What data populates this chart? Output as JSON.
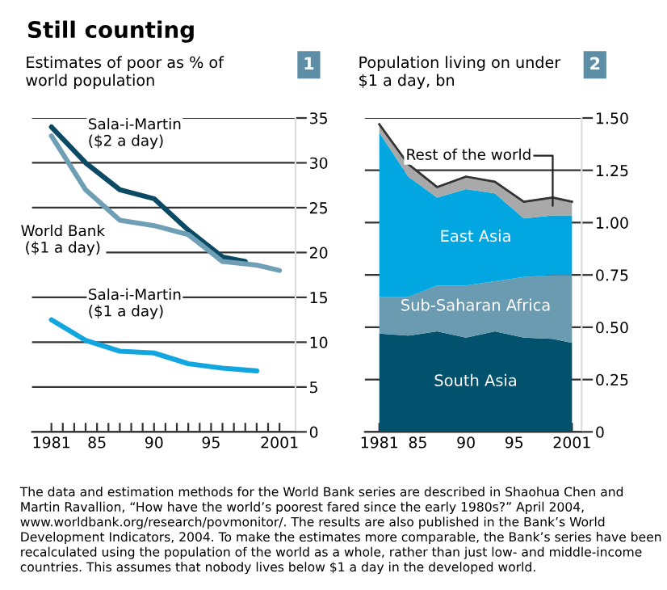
{
  "chart_data": [
    {
      "type": "line",
      "title": "Still counting",
      "subtitle": "Estimates of poor as % of\nworld population",
      "annotations": [
        "1"
      ],
      "xlim": [
        1979.3,
        2002.4
      ],
      "ylim": [
        0,
        35
      ],
      "xticks": [
        1981,
        {
          "value": 1982,
          "label": null
        },
        {
          "value": 1983,
          "label": null
        },
        {
          "value": 1984,
          "label": null
        },
        {
          "value": 1985,
          "label": "85"
        },
        {
          "value": 1986,
          "label": null
        },
        {
          "value": 1987,
          "label": null
        },
        {
          "value": 1988,
          "label": null
        },
        {
          "value": 1989,
          "label": null
        },
        {
          "value": 1990,
          "label": "90"
        },
        {
          "value": 1991,
          "label": null
        },
        {
          "value": 1992,
          "label": null
        },
        {
          "value": 1993,
          "label": null
        },
        {
          "value": 1994,
          "label": null
        },
        {
          "value": 1995,
          "label": "95"
        },
        {
          "value": 1996,
          "label": null
        },
        {
          "value": 1997,
          "label": null
        },
        {
          "value": 1998,
          "label": null
        },
        {
          "value": 1999,
          "label": null
        },
        {
          "value": 2000,
          "label": null
        },
        2001
      ],
      "yticks": [
        0,
        5,
        10,
        15,
        20,
        25,
        30,
        35
      ],
      "grid": "y",
      "series": [
        {
          "name": "Sala-i-Martin\n($2 a day)",
          "color": "#0a4a64",
          "x": [
            1981,
            1984,
            1987,
            1990,
            1993,
            1996,
            1998
          ],
          "values": [
            34,
            30,
            27,
            26,
            22.5,
            19.5,
            19
          ]
        },
        {
          "name": "World Bank\n($1 a day)",
          "color": "#6f9fb4",
          "x": [
            1981,
            1984,
            1987,
            1990,
            1993,
            1996,
            1999,
            2001
          ],
          "values": [
            33,
            27,
            23.6,
            23,
            22,
            19,
            18.6,
            18
          ]
        },
        {
          "name": "Sala-i-Martin\n($1 a day)",
          "color": "#12a6e0",
          "x": [
            1981,
            1984,
            1987,
            1990,
            1993,
            1996,
            1999
          ],
          "values": [
            12.5,
            10.2,
            9,
            8.8,
            7.6,
            7.1,
            6.8
          ]
        }
      ]
    },
    {
      "type": "area",
      "stacked": true,
      "subtitle": "Population living on under\n$1 a day, bn",
      "annotations": [
        "2",
        {
          "text": "Rest of the world",
          "x": 1999,
          "y": 1.08
        },
        "The data and estimation methods for the World Bank series are described in Shaohua Chen and Martin Ravallion, “How have the world’s poorest fared since the early 1980s?” April 2004, www.worldbank.org/research/povmonitor/. The results are also published in the Bank’s World Development Indicators, 2004. To make the estimates more comparable, the Bank’s series have been recalculated using the population of the world as a whole, rather than just low- and middle-income countries. This assumes that nobody lives below $1 a day in the developed world."
      ],
      "x": [
        1981,
        1984,
        1987,
        1990,
        1993,
        1996,
        1999,
        2001
      ],
      "xlim": [
        1979.5,
        2002
      ],
      "ylim": [
        0,
        1.5
      ],
      "xticks": [
        1981,
        {
          "value": 1982,
          "label": null
        },
        {
          "value": 1983,
          "label": null
        },
        {
          "value": 1984,
          "label": null
        },
        {
          "value": 1985,
          "label": "85"
        },
        {
          "value": 1986,
          "label": null
        },
        {
          "value": 1987,
          "label": null
        },
        {
          "value": 1988,
          "label": null
        },
        {
          "value": 1989,
          "label": null
        },
        {
          "value": 1990,
          "label": "90"
        },
        {
          "value": 1991,
          "label": null
        },
        {
          "value": 1992,
          "label": null
        },
        {
          "value": 1993,
          "label": null
        },
        {
          "value": 1994,
          "label": null
        },
        {
          "value": 1995,
          "label": "95"
        },
        {
          "value": 1996,
          "label": null
        },
        {
          "value": 1997,
          "label": null
        },
        {
          "value": 1998,
          "label": null
        },
        {
          "value": 1999,
          "label": null
        },
        {
          "value": 2000,
          "label": null
        },
        2001
      ],
      "yticks": [
        0,
        {
          "value": 0.25,
          "label": "0.25"
        },
        {
          "value": 0.5,
          "label": "0.50"
        },
        {
          "value": 0.75,
          "label": "0.75"
        },
        {
          "value": 1.0,
          "label": "1.00"
        },
        {
          "value": 1.25,
          "label": "1.25"
        },
        {
          "value": 1.5,
          "label": "1.50"
        }
      ],
      "grid": "y",
      "series": [
        {
          "name": "South Asia",
          "color": "#02526e",
          "values": [
            0.47,
            0.46,
            0.48,
            0.45,
            0.48,
            0.45,
            0.445,
            0.425
          ]
        },
        {
          "name": "Sub-Saharan Africa",
          "color": "#6a9bb0",
          "values": [
            0.175,
            0.185,
            0.22,
            0.25,
            0.24,
            0.29,
            0.305,
            0.325
          ]
        },
        {
          "name": "East Asia",
          "color": "#02a7e1",
          "values": [
            0.785,
            0.575,
            0.42,
            0.46,
            0.42,
            0.28,
            0.285,
            0.285
          ]
        },
        {
          "name": null,
          "color": "#a9a9a9",
          "values": [
            0.04,
            0.06,
            0.05,
            0.06,
            0.055,
            0.08,
            0.085,
            0.065
          ]
        }
      ]
    }
  ]
}
